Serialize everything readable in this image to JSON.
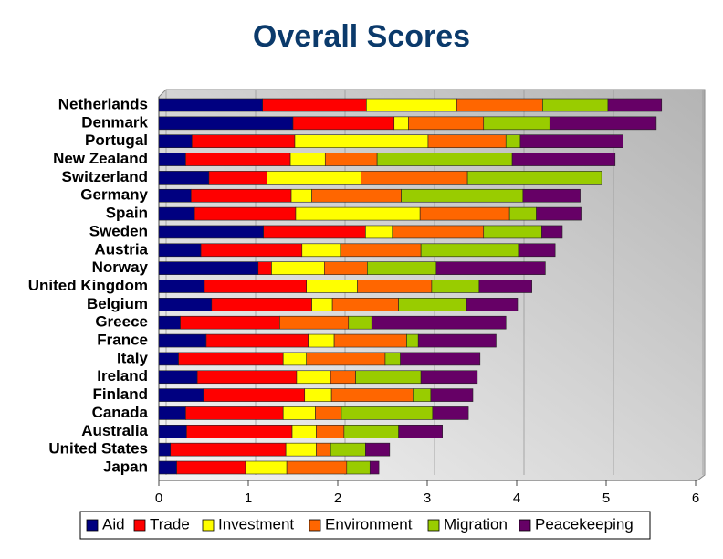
{
  "chart_data": {
    "type": "bar",
    "orientation": "horizontal",
    "stacked": true,
    "title": "Overall Scores",
    "categories": [
      "Netherlands",
      "Denmark",
      "Portugal",
      "New Zealand",
      "Switzerland",
      "Germany",
      "Spain",
      "Sweden",
      "Austria",
      "Norway",
      "United Kingdom",
      "Belgium",
      "Greece",
      "France",
      "Italy",
      "Ireland",
      "Finland",
      "Canada",
      "Australia",
      "United States",
      "Japan"
    ],
    "series": [
      {
        "name": "Aid",
        "color": "#000080",
        "values": [
          1.16,
          1.5,
          0.37,
          0.3,
          0.56,
          0.36,
          0.4,
          1.17,
          0.47,
          1.11,
          0.51,
          0.59,
          0.24,
          0.53,
          0.22,
          0.43,
          0.5,
          0.3,
          0.31,
          0.13,
          0.2
        ]
      },
      {
        "name": "Trade",
        "color": "#ff0000",
        "values": [
          1.16,
          1.13,
          1.15,
          1.17,
          0.65,
          1.12,
          1.13,
          1.14,
          1.13,
          0.15,
          1.14,
          1.12,
          1.11,
          1.14,
          1.17,
          1.11,
          1.13,
          1.09,
          1.18,
          1.29,
          0.77
        ]
      },
      {
        "name": "Investment",
        "color": "#ffff00",
        "values": [
          1.01,
          0.16,
          1.49,
          0.39,
          1.05,
          0.23,
          1.39,
          0.3,
          0.43,
          0.59,
          0.57,
          0.23,
          0,
          0.29,
          0.26,
          0.38,
          0.3,
          0.36,
          0.27,
          0.34,
          0.46
        ]
      },
      {
        "name": "Environment",
        "color": "#ff6600",
        "values": [
          0.96,
          0.84,
          0.87,
          0.58,
          1.19,
          1.0,
          1.0,
          1.02,
          0.9,
          0.48,
          0.83,
          0.74,
          0.77,
          0.81,
          0.88,
          0.28,
          0.91,
          0.29,
          0.31,
          0.16,
          0.67
        ]
      },
      {
        "name": "Migration",
        "color": "#99cc00",
        "values": [
          0.73,
          0.74,
          0.16,
          1.51,
          1.5,
          1.36,
          0.3,
          0.65,
          1.09,
          0.77,
          0.53,
          0.76,
          0.26,
          0.13,
          0.17,
          0.73,
          0.2,
          1.02,
          0.61,
          0.39,
          0.26
        ]
      },
      {
        "name": "Peacekeeping",
        "color": "#660066",
        "values": [
          0.6,
          1.19,
          1.15,
          1.15,
          0,
          0.64,
          0.5,
          0.23,
          0.41,
          1.22,
          0.59,
          0.57,
          1.5,
          0.87,
          0.89,
          0.63,
          0.47,
          0.4,
          0.49,
          0.27,
          0.1
        ]
      }
    ],
    "xlim": [
      0,
      6
    ],
    "xticks": [
      0,
      1,
      2,
      3,
      4,
      5,
      6
    ],
    "grid": true,
    "legend": "bottom"
  }
}
